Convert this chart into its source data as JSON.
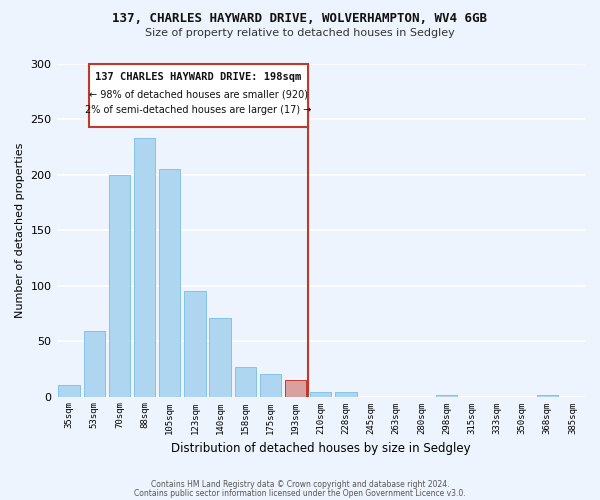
{
  "title": "137, CHARLES HAYWARD DRIVE, WOLVERHAMPTON, WV4 6GB",
  "subtitle": "Size of property relative to detached houses in Sedgley",
  "xlabel": "Distribution of detached houses by size in Sedgley",
  "ylabel": "Number of detached properties",
  "categories": [
    "35sqm",
    "53sqm",
    "70sqm",
    "88sqm",
    "105sqm",
    "123sqm",
    "140sqm",
    "158sqm",
    "175sqm",
    "193sqm",
    "210sqm",
    "228sqm",
    "245sqm",
    "263sqm",
    "280sqm",
    "298sqm",
    "315sqm",
    "333sqm",
    "350sqm",
    "368sqm",
    "385sqm"
  ],
  "values": [
    10,
    59,
    200,
    233,
    205,
    95,
    71,
    27,
    20,
    15,
    4,
    4,
    0,
    0,
    0,
    1,
    0,
    0,
    0,
    1,
    0
  ],
  "bar_color": "#aed6f1",
  "bar_edge_color": "#85c1e9",
  "highlight_bar_index": 9,
  "highlight_bar_color": "#d9a0a0",
  "highlight_bar_edge_color": "#c0392b",
  "vline_x": 9.5,
  "vline_color": "#c0392b",
  "annotation_title": "137 CHARLES HAYWARD DRIVE: 198sqm",
  "annotation_line1": "← 98% of detached houses are smaller (920)",
  "annotation_line2": "2% of semi-detached houses are larger (17) →",
  "annotation_box_color": "#ffffff",
  "annotation_border_color": "#c0392b",
  "ylim": [
    0,
    300
  ],
  "yticks": [
    0,
    50,
    100,
    150,
    200,
    250,
    300
  ],
  "footer1": "Contains HM Land Registry data © Crown copyright and database right 2024.",
  "footer2": "Contains public sector information licensed under the Open Government Licence v3.0.",
  "bg_color": "#edf4fd",
  "grid_color": "#ffffff"
}
